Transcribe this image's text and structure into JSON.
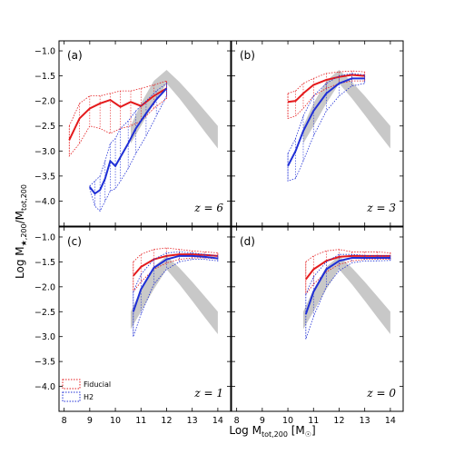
{
  "figure": {
    "xlabel": "Log M",
    "xlabel_sub": "tot,200",
    "xlabel_unit_open": " [M",
    "xlabel_unit_close": "]",
    "ylabel": "Log M",
    "ylabel_sub": "★,200",
    "ylabel_mid": "/M",
    "ylabel_sub2": "tot,200"
  },
  "legend": {
    "fiducial": "Fiducial",
    "h2": "H2"
  },
  "colors": {
    "fiducial": "#e41a1c",
    "h2": "#1f2fd6",
    "band": "#c8c8c8",
    "frame": "#000000"
  },
  "chart_data": [
    {
      "type": "line",
      "panel": "(a)",
      "redshift": "z = 6",
      "xlim": [
        7.8,
        14.5
      ],
      "ylim": [
        -4.5,
        -0.8
      ],
      "xticks": [
        8,
        9,
        10,
        11,
        12,
        13,
        14
      ],
      "yticks": [
        -4.0,
        -3.5,
        -3.0,
        -2.5,
        -2.0,
        -1.5,
        -1.0
      ],
      "fiducial": {
        "x": [
          8.2,
          8.6,
          9.0,
          9.4,
          9.8,
          10.2,
          10.6,
          11.0,
          11.5,
          12.0
        ],
        "median": [
          -2.78,
          -2.35,
          -2.15,
          -2.05,
          -1.98,
          -2.12,
          -2.02,
          -2.1,
          -1.9,
          -1.75
        ],
        "upper": [
          -2.5,
          -2.05,
          -1.9,
          -1.9,
          -1.85,
          -1.8,
          -1.8,
          -1.75,
          -1.68,
          -1.6
        ],
        "lower": [
          -3.1,
          -2.85,
          -2.5,
          -2.55,
          -2.65,
          -2.55,
          -2.5,
          -2.4,
          -2.15,
          -1.95
        ]
      },
      "h2": {
        "x": [
          9.0,
          9.2,
          9.4,
          9.6,
          9.8,
          10.0,
          10.2,
          10.5,
          10.8,
          11.2,
          11.6,
          12.0
        ],
        "median": [
          -3.72,
          -3.85,
          -3.78,
          -3.55,
          -3.2,
          -3.3,
          -3.12,
          -2.85,
          -2.55,
          -2.25,
          -1.97,
          -1.75
        ],
        "upper": [
          -3.7,
          -3.6,
          -3.5,
          -3.2,
          -2.85,
          -2.75,
          -2.55,
          -2.4,
          -2.2,
          -2.0,
          -1.8,
          -1.65
        ],
        "lower": [
          -3.75,
          -4.1,
          -4.2,
          -4.0,
          -3.8,
          -3.75,
          -3.6,
          -3.35,
          -3.05,
          -2.7,
          -2.3,
          -1.9
        ]
      }
    },
    {
      "type": "line",
      "panel": "(b)",
      "redshift": "z = 3",
      "xlim": [
        7.8,
        14.5
      ],
      "ylim": [
        -4.5,
        -0.8
      ],
      "xticks": [
        8,
        9,
        10,
        11,
        12,
        13,
        14
      ],
      "yticks": [
        -4.0,
        -3.5,
        -3.0,
        -2.5,
        -2.0,
        -1.5,
        -1.0
      ],
      "fiducial": {
        "x": [
          10.0,
          10.3,
          10.6,
          11.0,
          11.5,
          12.0,
          12.5,
          13.0
        ],
        "median": [
          -2.02,
          -2.0,
          -1.85,
          -1.68,
          -1.58,
          -1.52,
          -1.48,
          -1.5
        ],
        "upper": [
          -1.85,
          -1.8,
          -1.65,
          -1.55,
          -1.45,
          -1.42,
          -1.4,
          -1.42
        ],
        "lower": [
          -2.35,
          -2.3,
          -2.15,
          -1.9,
          -1.75,
          -1.65,
          -1.6,
          -1.6
        ]
      },
      "h2": {
        "x": [
          10.0,
          10.3,
          10.6,
          11.0,
          11.5,
          12.0,
          12.5,
          13.0
        ],
        "median": [
          -3.3,
          -3.0,
          -2.6,
          -2.2,
          -1.85,
          -1.65,
          -1.55,
          -1.55
        ],
        "upper": [
          -3.05,
          -2.75,
          -2.3,
          -1.9,
          -1.65,
          -1.5,
          -1.45,
          -1.48
        ],
        "lower": [
          -3.6,
          -3.55,
          -3.2,
          -2.7,
          -2.2,
          -1.9,
          -1.7,
          -1.65
        ]
      }
    },
    {
      "type": "line",
      "panel": "(c)",
      "redshift": "z = 1",
      "xlim": [
        7.8,
        14.5
      ],
      "ylim": [
        -4.5,
        -0.8
      ],
      "xticks": [
        8,
        9,
        10,
        11,
        12,
        13,
        14
      ],
      "yticks": [
        -4.0,
        -3.5,
        -3.0,
        -2.5,
        -2.0,
        -1.5,
        -1.0
      ],
      "fiducial": {
        "x": [
          10.7,
          11.0,
          11.5,
          12.0,
          12.5,
          13.0,
          13.5,
          14.0
        ],
        "median": [
          -1.78,
          -1.6,
          -1.45,
          -1.38,
          -1.35,
          -1.35,
          -1.36,
          -1.38
        ],
        "upper": [
          -1.5,
          -1.35,
          -1.25,
          -1.22,
          -1.25,
          -1.28,
          -1.3,
          -1.32
        ],
        "lower": [
          -2.1,
          -1.9,
          -1.65,
          -1.52,
          -1.45,
          -1.42,
          -1.42,
          -1.44
        ]
      },
      "h2": {
        "x": [
          10.7,
          11.0,
          11.5,
          12.0,
          12.5,
          13.0,
          13.5,
          14.0
        ],
        "median": [
          -2.5,
          -2.05,
          -1.62,
          -1.45,
          -1.38,
          -1.38,
          -1.4,
          -1.43
        ],
        "upper": [
          -2.1,
          -1.75,
          -1.45,
          -1.32,
          -1.3,
          -1.32,
          -1.35,
          -1.38
        ],
        "lower": [
          -3.0,
          -2.55,
          -1.95,
          -1.65,
          -1.5,
          -1.45,
          -1.45,
          -1.48
        ]
      }
    },
    {
      "type": "line",
      "panel": "(d)",
      "redshift": "z = 0",
      "xlim": [
        7.8,
        14.5
      ],
      "ylim": [
        -4.5,
        -0.8
      ],
      "xticks": [
        8,
        9,
        10,
        11,
        12,
        13,
        14
      ],
      "yticks": [
        -4.0,
        -3.5,
        -3.0,
        -2.5,
        -2.0,
        -1.5,
        -1.0
      ],
      "fiducial": {
        "x": [
          10.7,
          11.0,
          11.5,
          12.0,
          12.5,
          13.0,
          13.5,
          14.0
        ],
        "median": [
          -1.85,
          -1.65,
          -1.48,
          -1.4,
          -1.38,
          -1.38,
          -1.38,
          -1.38
        ],
        "upper": [
          -1.5,
          -1.38,
          -1.28,
          -1.25,
          -1.3,
          -1.3,
          -1.3,
          -1.32
        ],
        "lower": [
          -2.15,
          -1.95,
          -1.7,
          -1.55,
          -1.48,
          -1.45,
          -1.45,
          -1.45
        ]
      },
      "h2": {
        "x": [
          10.7,
          11.0,
          11.5,
          12.0,
          12.5,
          13.0,
          13.5,
          14.0
        ],
        "median": [
          -2.55,
          -2.1,
          -1.65,
          -1.48,
          -1.42,
          -1.42,
          -1.42,
          -1.42
        ],
        "upper": [
          -2.15,
          -1.8,
          -1.5,
          -1.35,
          -1.35,
          -1.37,
          -1.38,
          -1.38
        ],
        "lower": [
          -3.05,
          -2.6,
          -2.0,
          -1.68,
          -1.52,
          -1.48,
          -1.48,
          -1.47
        ]
      }
    }
  ],
  "band": {
    "x": [
      10.6,
      11.0,
      11.5,
      12.0,
      12.5,
      13.0,
      13.5,
      14.0
    ],
    "upper": [
      -2.5,
      -2.05,
      -1.6,
      -1.38,
      -1.62,
      -1.9,
      -2.2,
      -2.5
    ],
    "lower": [
      -2.85,
      -2.5,
      -2.05,
      -1.65,
      -1.95,
      -2.28,
      -2.62,
      -2.95
    ]
  }
}
